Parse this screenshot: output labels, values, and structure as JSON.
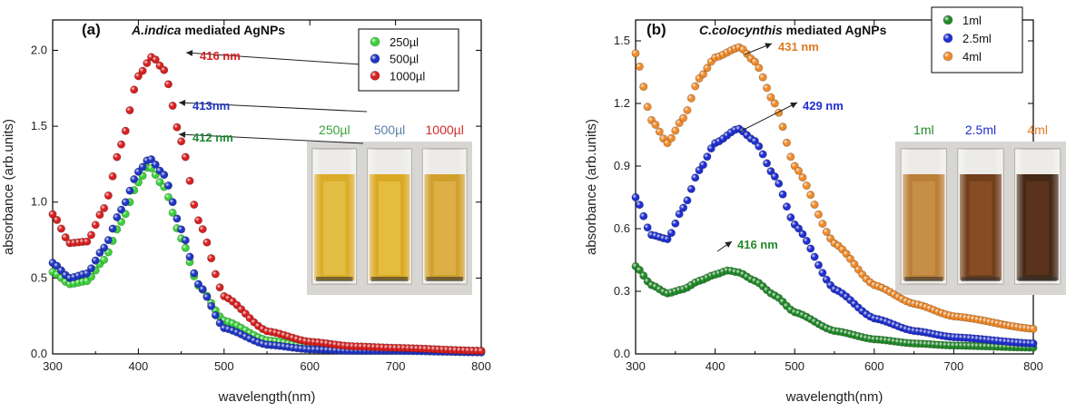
{
  "chart_data": [
    {
      "type": "scatter",
      "panel": "(a)",
      "title_italic": "A.indica",
      "title_rest": " mediated AgNPs",
      "xlabel": "wavelength(nm)",
      "ylabel": "absorbance (arb.units)",
      "xlim": [
        300,
        800
      ],
      "ylim": [
        0,
        2.2
      ],
      "xticks": [
        300,
        400,
        500,
        600,
        700,
        800
      ],
      "yticks": [
        0.0,
        0.5,
        1.0,
        1.5,
        2.0
      ],
      "ytick_labels": [
        "0.0",
        "0.5",
        "1.0",
        "1.5",
        "2.0"
      ],
      "legend_position": "top-right",
      "legend": [
        "250µl",
        "500µl",
        "1000µl"
      ],
      "series": [
        {
          "name": "250µl",
          "color": "#3ad13a",
          "points": [
            [
              300,
              0.54
            ],
            [
              320,
              0.46
            ],
            [
              340,
              0.48
            ],
            [
              360,
              0.62
            ],
            [
              380,
              0.87
            ],
            [
              400,
              1.13
            ],
            [
              412,
              1.24
            ],
            [
              430,
              1.1
            ],
            [
              450,
              0.76
            ],
            [
              470,
              0.45
            ],
            [
              500,
              0.22
            ],
            [
              550,
              0.09
            ],
            [
              600,
              0.05
            ],
            [
              650,
              0.04
            ],
            [
              700,
              0.03
            ],
            [
              800,
              0.02
            ]
          ]
        },
        {
          "name": "500µl",
          "color": "#1f35c4",
          "points": [
            [
              300,
              0.6
            ],
            [
              320,
              0.5
            ],
            [
              340,
              0.53
            ],
            [
              360,
              0.7
            ],
            [
              380,
              0.95
            ],
            [
              400,
              1.2
            ],
            [
              413,
              1.29
            ],
            [
              430,
              1.18
            ],
            [
              450,
              0.82
            ],
            [
              470,
              0.46
            ],
            [
              500,
              0.17
            ],
            [
              550,
              0.06
            ],
            [
              600,
              0.03
            ],
            [
              650,
              0.02
            ],
            [
              700,
              0.02
            ],
            [
              800,
              0.01
            ]
          ]
        },
        {
          "name": "1000µl",
          "color": "#d91f1f",
          "points": [
            [
              300,
              0.92
            ],
            [
              320,
              0.73
            ],
            [
              340,
              0.74
            ],
            [
              360,
              0.96
            ],
            [
              380,
              1.38
            ],
            [
              400,
              1.83
            ],
            [
              416,
              1.96
            ],
            [
              430,
              1.87
            ],
            [
              450,
              1.4
            ],
            [
              470,
              0.88
            ],
            [
              500,
              0.38
            ],
            [
              550,
              0.15
            ],
            [
              600,
              0.08
            ],
            [
              650,
              0.05
            ],
            [
              700,
              0.04
            ],
            [
              800,
              0.02
            ]
          ]
        }
      ],
      "annotations": [
        {
          "text": "416 nm",
          "color": "#d91f1f",
          "x": 416,
          "y": 1.96
        },
        {
          "text": "413nm",
          "color": "#1f35c4",
          "x": 413,
          "y": 1.29
        },
        {
          "text": "412 nm",
          "color": "#1e8a32",
          "x": 412,
          "y": 1.24
        }
      ],
      "inset": {
        "labels": [
          "250µl",
          "500µl",
          "1000µl"
        ],
        "colors": [
          "#3aa13a",
          "#5a7fa8",
          "#d02a2a"
        ]
      }
    },
    {
      "type": "scatter",
      "panel": "(b)",
      "title_italic": "C.colocynthis",
      "title_rest": " mediated AgNPs",
      "xlabel": "wavelength(nm)",
      "ylabel": "absorbance (arb.units)",
      "xlim": [
        300,
        800
      ],
      "ylim": [
        0,
        1.6
      ],
      "xticks": [
        300,
        400,
        500,
        600,
        700,
        800
      ],
      "yticks": [
        0.0,
        0.3,
        0.6,
        0.9,
        1.2,
        1.5
      ],
      "ytick_labels": [
        "0.0",
        "0.3",
        "0.6",
        "0.9",
        "1.2",
        "1.5"
      ],
      "legend_position": "top-right",
      "legend": [
        "1ml",
        "2.5ml",
        "4ml"
      ],
      "series": [
        {
          "name": "1ml",
          "color": "#228a2a",
          "points": [
            [
              300,
              0.42
            ],
            [
              320,
              0.33
            ],
            [
              340,
              0.29
            ],
            [
              360,
              0.31
            ],
            [
              380,
              0.35
            ],
            [
              400,
              0.38
            ],
            [
              416,
              0.4
            ],
            [
              430,
              0.39
            ],
            [
              450,
              0.35
            ],
            [
              475,
              0.28
            ],
            [
              500,
              0.2
            ],
            [
              550,
              0.11
            ],
            [
              600,
              0.07
            ],
            [
              650,
              0.05
            ],
            [
              700,
              0.04
            ],
            [
              800,
              0.03
            ]
          ]
        },
        {
          "name": "2.5ml",
          "color": "#1f2fd0",
          "points": [
            [
              300,
              0.75
            ],
            [
              320,
              0.57
            ],
            [
              340,
              0.55
            ],
            [
              360,
              0.7
            ],
            [
              380,
              0.88
            ],
            [
              400,
              1.01
            ],
            [
              429,
              1.08
            ],
            [
              450,
              1.02
            ],
            [
              475,
              0.85
            ],
            [
              500,
              0.62
            ],
            [
              550,
              0.31
            ],
            [
              600,
              0.17
            ],
            [
              650,
              0.11
            ],
            [
              700,
              0.08
            ],
            [
              800,
              0.05
            ]
          ]
        },
        {
          "name": "4ml",
          "color": "#f08a2a",
          "points": [
            [
              300,
              1.44
            ],
            [
              320,
              1.12
            ],
            [
              340,
              1.01
            ],
            [
              360,
              1.13
            ],
            [
              380,
              1.32
            ],
            [
              400,
              1.42
            ],
            [
              431,
              1.47
            ],
            [
              450,
              1.4
            ],
            [
              475,
              1.2
            ],
            [
              500,
              0.9
            ],
            [
              550,
              0.53
            ],
            [
              600,
              0.33
            ],
            [
              650,
              0.24
            ],
            [
              700,
              0.18
            ],
            [
              800,
              0.12
            ]
          ]
        }
      ],
      "annotations": [
        {
          "text": "431 nm",
          "color": "#e07a20",
          "x": 431,
          "y": 1.47
        },
        {
          "text": "429 nm",
          "color": "#1f2fd0",
          "x": 429,
          "y": 1.08
        },
        {
          "text": "416 nm",
          "color": "#228a2a",
          "x": 416,
          "y": 0.4
        }
      ],
      "inset": {
        "labels": [
          "1ml",
          "2.5ml",
          "4ml"
        ],
        "colors": [
          "#228a2a",
          "#1f2fd0",
          "#e07a20"
        ]
      }
    }
  ]
}
